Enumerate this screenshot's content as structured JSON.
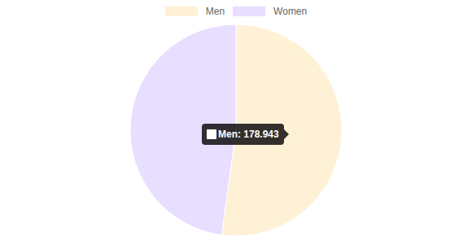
{
  "chart_data": {
    "type": "pie",
    "categories": [
      "Men",
      "Women"
    ],
    "values": [
      178.943,
      164
    ],
    "colors": [
      "#fff1d6",
      "#e8deff"
    ],
    "legend": "top"
  }
}
